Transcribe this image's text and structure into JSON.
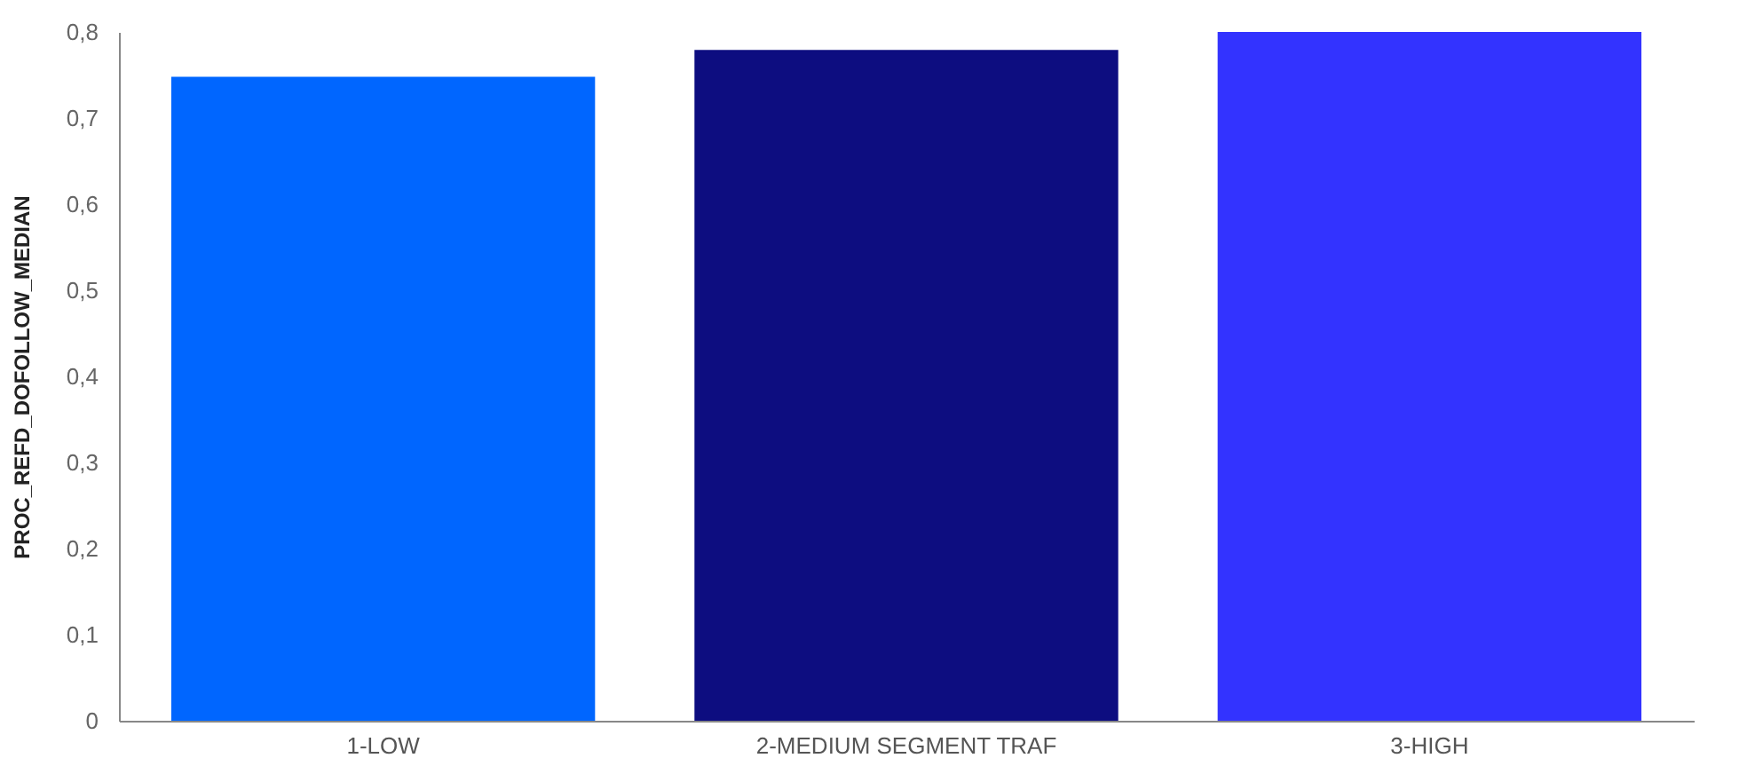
{
  "chart_data": {
    "type": "bar",
    "ylabel": "PROC_REFD_DOFOLLOW_MEDIAN",
    "categories": [
      "1-LOW",
      "2-MEDIUM SEGMENT TRAF",
      "3-HIGH"
    ],
    "values": [
      0.748,
      0.779,
      0.8
    ],
    "colors": [
      "#0066ff",
      "#0d0d80",
      "#3333ff"
    ],
    "ylim": [
      0,
      0.8
    ],
    "yticks": [
      "0",
      {
        "value": 0.1,
        "label": "0,1"
      },
      {
        "value": 0.2,
        "label": "0,2"
      },
      {
        "value": 0.3,
        "label": "0,3"
      },
      {
        "value": 0.4,
        "label": "0,4"
      },
      {
        "value": 0.5,
        "label": "0,5"
      },
      {
        "value": 0.6,
        "label": "0,6"
      },
      {
        "value": 0.7,
        "label": "0,7"
      },
      {
        "value": 0.8,
        "label": "0,8"
      }
    ],
    "grid": false
  }
}
